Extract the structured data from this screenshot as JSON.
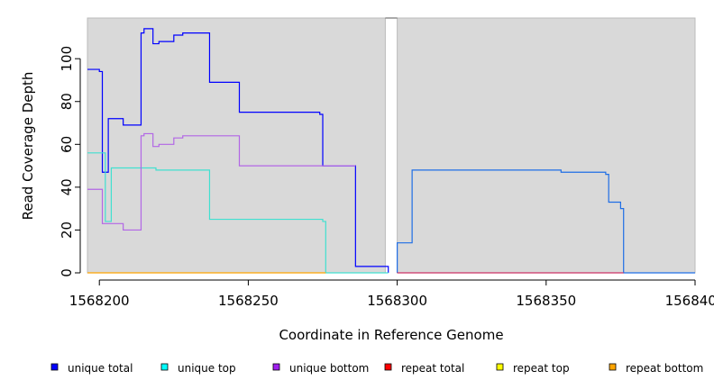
{
  "chart_data": {
    "type": "line",
    "title": "",
    "xlabel": "Coordinate in Reference Genome",
    "ylabel": "Read Coverage Depth",
    "xlim": [
      1568196,
      1568400
    ],
    "ylim": [
      0,
      119
    ],
    "x_ticks": [
      1568200,
      1568250,
      1568300,
      1568350,
      1568400
    ],
    "x_tick_labels": [
      "1568200",
      "1568250",
      "1568300",
      "1568350",
      "1568400"
    ],
    "y_ticks": [
      0,
      20,
      40,
      60,
      80,
      100
    ],
    "y_tick_labels": [
      "0",
      "20",
      "40",
      "60",
      "80",
      "100"
    ],
    "grid": false,
    "legend_position": "bottom",
    "panel_background": "#d9d9d9",
    "gap_region": [
      1568296,
      1568300
    ],
    "series": [
      {
        "name": "unique total",
        "color": "#0000ff",
        "points": [
          [
            1568196,
            95
          ],
          [
            1568200,
            95
          ],
          [
            1568200,
            94
          ],
          [
            1568201,
            94
          ],
          [
            1568201,
            47
          ],
          [
            1568203,
            47
          ],
          [
            1568203,
            72
          ],
          [
            1568208,
            72
          ],
          [
            1568208,
            69
          ],
          [
            1568214,
            69
          ],
          [
            1568214,
            112
          ],
          [
            1568215,
            112
          ],
          [
            1568215,
            114
          ],
          [
            1568218,
            114
          ],
          [
            1568218,
            107
          ],
          [
            1568220,
            107
          ],
          [
            1568220,
            108
          ],
          [
            1568225,
            108
          ],
          [
            1568225,
            111
          ],
          [
            1568228,
            111
          ],
          [
            1568228,
            112
          ],
          [
            1568237,
            112
          ],
          [
            1568237,
            89
          ],
          [
            1568247,
            89
          ],
          [
            1568247,
            75
          ],
          [
            1568274,
            75
          ],
          [
            1568274,
            74
          ],
          [
            1568275,
            74
          ],
          [
            1568275,
            50
          ],
          [
            1568286,
            50
          ],
          [
            1568286,
            3
          ],
          [
            1568297,
            3
          ],
          [
            1568297,
            0
          ]
        ]
      },
      {
        "name": "unique total",
        "color": "#1e6ee6",
        "points": [
          [
            1568300,
            0
          ],
          [
            1568300,
            14
          ],
          [
            1568305,
            14
          ],
          [
            1568305,
            48
          ],
          [
            1568355,
            48
          ],
          [
            1568355,
            47
          ],
          [
            1568370,
            47
          ],
          [
            1568370,
            46
          ],
          [
            1568371,
            46
          ],
          [
            1568371,
            33
          ],
          [
            1568375,
            33
          ],
          [
            1568375,
            30
          ],
          [
            1568376,
            30
          ],
          [
            1568376,
            0
          ],
          [
            1568400,
            0
          ]
        ]
      },
      {
        "name": "unique top",
        "color": "#40e0d0",
        "points": [
          [
            1568196,
            56
          ],
          [
            1568202,
            56
          ],
          [
            1568202,
            24
          ],
          [
            1568204,
            24
          ],
          [
            1568204,
            49
          ],
          [
            1568219,
            49
          ],
          [
            1568219,
            48
          ],
          [
            1568237,
            48
          ],
          [
            1568237,
            25
          ],
          [
            1568275,
            25
          ],
          [
            1568275,
            24
          ],
          [
            1568276,
            24
          ],
          [
            1568276,
            0
          ],
          [
            1568297,
            0
          ]
        ]
      },
      {
        "name": "unique bottom",
        "color": "#b266e6",
        "points": [
          [
            1568196,
            39
          ],
          [
            1568201,
            39
          ],
          [
            1568201,
            23
          ],
          [
            1568208,
            23
          ],
          [
            1568208,
            20
          ],
          [
            1568214,
            20
          ],
          [
            1568214,
            64
          ],
          [
            1568215,
            64
          ],
          [
            1568215,
            65
          ],
          [
            1568218,
            65
          ],
          [
            1568218,
            59
          ],
          [
            1568220,
            59
          ],
          [
            1568220,
            60
          ],
          [
            1568225,
            60
          ],
          [
            1568225,
            63
          ],
          [
            1568228,
            63
          ],
          [
            1568228,
            64
          ],
          [
            1568247,
            64
          ],
          [
            1568247,
            50
          ],
          [
            1568286,
            50
          ]
        ]
      },
      {
        "name": "repeat total",
        "color": "#cc3366",
        "points": [
          [
            1568300,
            0
          ],
          [
            1568376,
            0
          ]
        ]
      },
      {
        "name": "repeat bottom",
        "color": "#ffa500",
        "points": [
          [
            1568196,
            0
          ],
          [
            1568276,
            0
          ]
        ]
      }
    ],
    "legend": [
      {
        "label": "unique total",
        "color": "#0000ff"
      },
      {
        "label": "unique top",
        "color": "#00ffff"
      },
      {
        "label": "unique bottom",
        "color": "#a020f0"
      },
      {
        "label": "repeat total",
        "color": "#ff0000"
      },
      {
        "label": "repeat top",
        "color": "#ffff00"
      },
      {
        "label": "repeat bottom",
        "color": "#ffa500"
      }
    ]
  }
}
